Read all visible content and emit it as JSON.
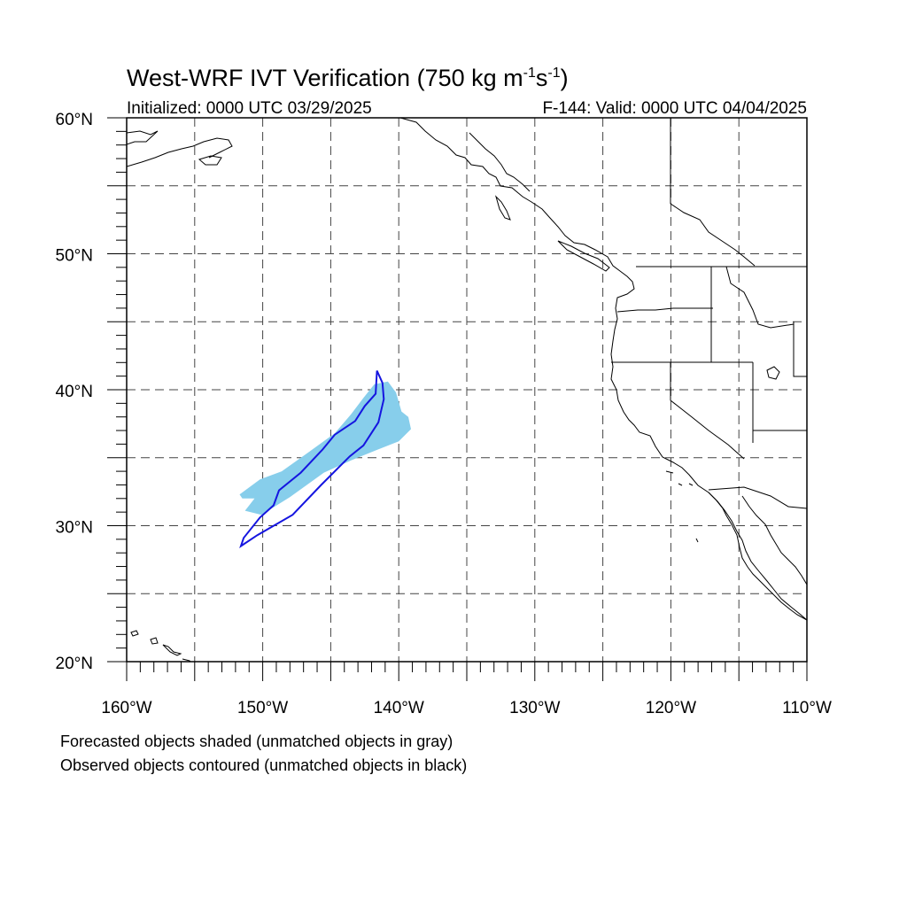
{
  "title": "West-WRF IVT Verification (750 kg m",
  "title_sup1": "-1",
  "title_mid": "s",
  "title_sup2": "-1",
  "title_end": ")",
  "init_label": "Initialized: 0000 UTC 03/29/2025",
  "valid_label": "F-144: Valid: 0000 UTC 04/04/2025",
  "notes": {
    "forecast": "Forecasted objects shaded (unmatched objects in gray)",
    "observed": "Observed objects contoured (unmatched objects in black)"
  },
  "map": {
    "projection": "cylindrical equidistant",
    "lon_range": [
      -160,
      -110
    ],
    "lat_range": [
      20,
      60
    ],
    "grid": "dashed",
    "lon_ticks": [
      "160°W",
      "150°W",
      "140°W",
      "130°W",
      "120°W",
      "110°W"
    ],
    "lat_ticks": [
      "20°N",
      "30°N",
      "40°N",
      "50°N",
      "60°N"
    ]
  },
  "colors": {
    "forecast_fill": "#87ceeb",
    "observed_contour": "#1515e0",
    "coastline": "#000000",
    "grid": "#444444"
  },
  "chart_data": {
    "type": "map",
    "forecast_object": {
      "matched": true,
      "polygon_lonlat": [
        [
          -151.7,
          32.3
        ],
        [
          -150.2,
          33.4
        ],
        [
          -148.6,
          34.0
        ],
        [
          -146.5,
          35.5
        ],
        [
          -144.7,
          36.8
        ],
        [
          -143.5,
          38.2
        ],
        [
          -142.6,
          39.4
        ],
        [
          -141.8,
          40.4
        ],
        [
          -140.8,
          40.6
        ],
        [
          -140.2,
          39.8
        ],
        [
          -139.8,
          38.4
        ],
        [
          -139.3,
          38.0
        ],
        [
          -139.1,
          37.1
        ],
        [
          -140.0,
          36.2
        ],
        [
          -141.8,
          35.5
        ],
        [
          -143.5,
          34.8
        ],
        [
          -145.5,
          33.9
        ],
        [
          -148.0,
          32.1
        ],
        [
          -150.1,
          30.8
        ],
        [
          -151.3,
          31.1
        ],
        [
          -150.6,
          32.0
        ],
        [
          -151.5,
          32.0
        ]
      ]
    },
    "observed_object": {
      "matched": true,
      "polygon_lonlat": [
        [
          -151.6,
          28.5
        ],
        [
          -151.4,
          29.1
        ],
        [
          -150.2,
          30.6
        ],
        [
          -149.2,
          31.5
        ],
        [
          -148.8,
          32.6
        ],
        [
          -147.2,
          33.9
        ],
        [
          -145.6,
          35.6
        ],
        [
          -144.7,
          36.7
        ],
        [
          -143.2,
          37.7
        ],
        [
          -142.5,
          38.8
        ],
        [
          -141.7,
          39.7
        ],
        [
          -141.6,
          41.4
        ],
        [
          -141.2,
          40.5
        ],
        [
          -141.1,
          39.3
        ],
        [
          -141.5,
          37.6
        ],
        [
          -142.6,
          35.9
        ],
        [
          -143.6,
          35.1
        ],
        [
          -145.7,
          33.0
        ],
        [
          -147.8,
          30.8
        ],
        [
          -150.4,
          29.3
        ],
        [
          -151.6,
          28.5
        ]
      ]
    }
  }
}
